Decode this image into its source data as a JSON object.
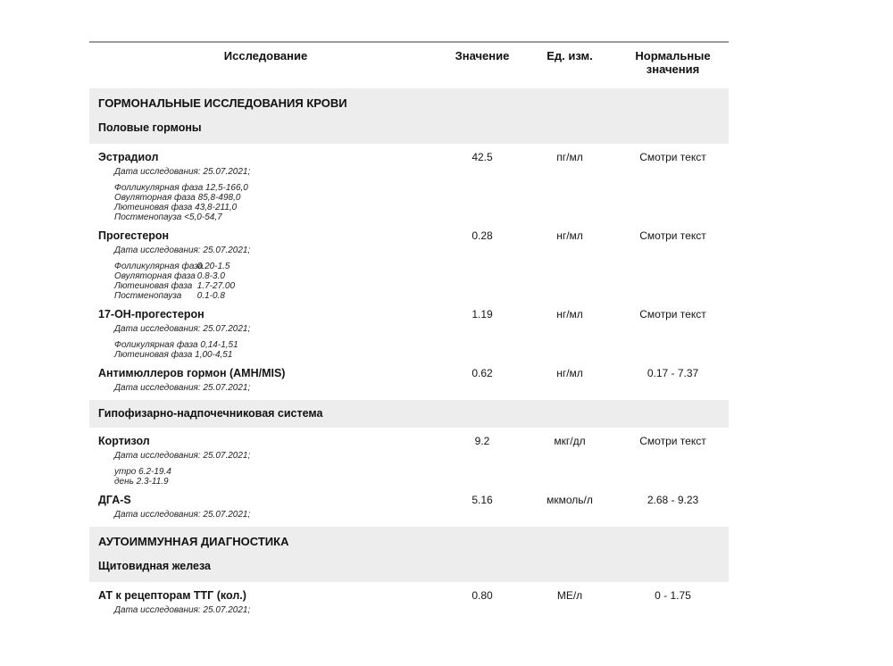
{
  "table": {
    "columns": [
      "Исследование",
      "Значение",
      "Ед. изм.",
      "Нормальные значения"
    ]
  },
  "sections": [
    {
      "title": "ГОРМОНАЛЬНЫЕ ИССЛЕДОВАНИЯ КРОВИ",
      "groups": [
        {
          "title": "Половые гормоны",
          "rows": [
            {
              "name": "Эстрадиол",
              "value": "42.5",
              "unit": "пг/мл",
              "normal": "Смотри текст",
              "date": "Дата исследования: 25.07.2021;",
              "references": [
                {
                  "label": "Фолликулярная фаза",
                  "range": "12,5-166,0"
                },
                {
                  "label": "Овуляторная фаза",
                  "range": "85,8-498,0"
                },
                {
                  "label": "Лютеиновая фаза",
                  "range": "43,8-211,0"
                },
                {
                  "label": "Постменопауза",
                  "range": "<5,0-54,7"
                }
              ]
            },
            {
              "name": "Прогестерон",
              "value": "0.28",
              "unit": "нг/мл",
              "normal": "Смотри текст",
              "date": "Дата исследования: 25.07.2021;",
              "references": [
                {
                  "label": "Фолликулярная фаза",
                  "range": "0.20-1.5"
                },
                {
                  "label": "Овуляторная фаза",
                  "range": "0.8-3.0"
                },
                {
                  "label": "Лютеиновая фаза",
                  "range": "1.7-27.00"
                },
                {
                  "label": "Постменопауза",
                  "range": "0.1-0.8"
                }
              ]
            },
            {
              "name": "17-OH-прогестерон",
              "value": "1.19",
              "unit": "нг/мл",
              "normal": "Смотри текст",
              "date": "Дата исследования: 25.07.2021;",
              "references": [
                {
                  "label": "Фоликулярная фаза",
                  "range": "0,14-1,51"
                },
                {
                  "label": "Лютеиновая фаза",
                  "range": "1,00-4,51"
                }
              ]
            },
            {
              "name": "Антимюллеров гормон (AMH/MIS)",
              "value": "0.62",
              "unit": "нг/мл",
              "normal": "0.17 - 7.37",
              "date": "Дата исследования: 25.07.2021;",
              "references": []
            }
          ]
        },
        {
          "title": "Гипофизарно-надпочечниковая система",
          "rows": [
            {
              "name": "Кортизол",
              "value": "9.2",
              "unit": "мкг/дл",
              "normal": "Смотри текст",
              "date": "Дата исследования: 25.07.2021;",
              "references": [
                {
                  "label": "утро",
                  "range": "6.2-19.4"
                },
                {
                  "label": "день",
                  "range": "2.3-11.9"
                }
              ]
            },
            {
              "name": "ДГА-S",
              "value": "5.16",
              "unit": "мкмоль/л",
              "normal": "2.68 - 9.23",
              "date": "Дата исследования: 25.07.2021;",
              "references": []
            }
          ]
        }
      ]
    },
    {
      "title": "АУТОИММУННАЯ ДИАГНОСТИКА",
      "groups": [
        {
          "title": "Щитовидная железа",
          "rows": [
            {
              "name": "АТ к рецепторам ТТГ (кол.)",
              "value": "0.80",
              "unit": "МЕ/л",
              "normal": "0 - 1.75",
              "date": "Дата исследования: 25.07.2021;",
              "references": []
            }
          ]
        }
      ]
    }
  ],
  "colors": {
    "band_background": "#ededed",
    "rule": "#9b9b9b",
    "text": "#151515"
  }
}
